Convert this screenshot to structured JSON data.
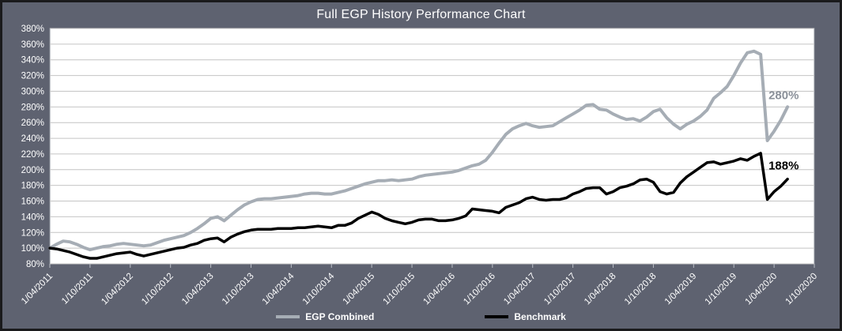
{
  "chart_data": {
    "type": "line",
    "title": "Full EGP History Performance Chart",
    "y_unit": "%",
    "ylim": [
      80,
      380
    ],
    "y_tick_step": 20,
    "y_tick_labels": [
      "380%",
      "360%",
      "340%",
      "320%",
      "300%",
      "280%",
      "260%",
      "240%",
      "220%",
      "200%",
      "180%",
      "160%",
      "140%",
      "120%",
      "100%",
      "80%"
    ],
    "x_tick_labels": [
      "1/04/2011",
      "1/10/2011",
      "1/04/2012",
      "1/10/2012",
      "1/04/2013",
      "1/10/2013",
      "1/04/2014",
      "1/10/2014",
      "1/04/2015",
      "1/10/2015",
      "1/04/2016",
      "1/10/2016",
      "1/04/2017",
      "1/10/2017",
      "1/04/2018",
      "1/10/2018",
      "1/04/2019",
      "1/10/2019",
      "1/04/2020",
      "1/10/2020"
    ],
    "x_frequency": "monthly",
    "x_start": "1/04/2011",
    "x_axis_total_months": 114,
    "grid": "horizontal",
    "legend_position": "bottom",
    "series": [
      {
        "name": "EGP Combined",
        "color": "#a6adb5",
        "end_label": "280%",
        "end_label_color": "#8a9099",
        "values": [
          100,
          105,
          109,
          108,
          105,
          101,
          98,
          100,
          102,
          103,
          105,
          106,
          105,
          104,
          103,
          104,
          107,
          110,
          112,
          114,
          116,
          120,
          125,
          131,
          138,
          140,
          135,
          142,
          149,
          155,
          159,
          162,
          163,
          163,
          164,
          165,
          166,
          167,
          169,
          170,
          170,
          169,
          169,
          171,
          173,
          176,
          179,
          182,
          184,
          186,
          186,
          187,
          186,
          187,
          188,
          191,
          193,
          194,
          195,
          196,
          197,
          199,
          202,
          205,
          207,
          212,
          222,
          234,
          245,
          252,
          256,
          259,
          256,
          254,
          255,
          256,
          261,
          266,
          271,
          276,
          282,
          283,
          277,
          276,
          271,
          267,
          264,
          265,
          262,
          267,
          274,
          277,
          266,
          258,
          252,
          258,
          262,
          268,
          276,
          291,
          298,
          306,
          320,
          336,
          349,
          351,
          347,
          237,
          249,
          263,
          280
        ]
      },
      {
        "name": "Benchmark",
        "color": "#000000",
        "end_label": "188%",
        "end_label_color": "#000000",
        "values": [
          100,
          99,
          97,
          95,
          92,
          89,
          87,
          87,
          89,
          91,
          93,
          94,
          95,
          92,
          90,
          92,
          94,
          96,
          98,
          100,
          101,
          104,
          106,
          110,
          112,
          113,
          108,
          114,
          118,
          121,
          123,
          124,
          124,
          124,
          125,
          125,
          125,
          126,
          126,
          127,
          128,
          127,
          126,
          129,
          129,
          132,
          138,
          142,
          146,
          143,
          138,
          135,
          133,
          131,
          133,
          136,
          137,
          137,
          135,
          135,
          136,
          138,
          141,
          150,
          149,
          148,
          147,
          145,
          152,
          155,
          158,
          163,
          165,
          162,
          161,
          162,
          162,
          164,
          169,
          172,
          176,
          177,
          177,
          169,
          172,
          177,
          179,
          182,
          187,
          188,
          184,
          172,
          169,
          171,
          183,
          191,
          197,
          203,
          209,
          210,
          207,
          209,
          211,
          214,
          212,
          217,
          221,
          162,
          172,
          179,
          188
        ]
      }
    ],
    "colors": {
      "background": "#5e6270",
      "frame_border": "#1a1a1c",
      "plot_background": "#ffffff",
      "gridline": "#c4c4c4",
      "plot_border": "#8a8f98",
      "axis_text": "#ffffff"
    }
  }
}
